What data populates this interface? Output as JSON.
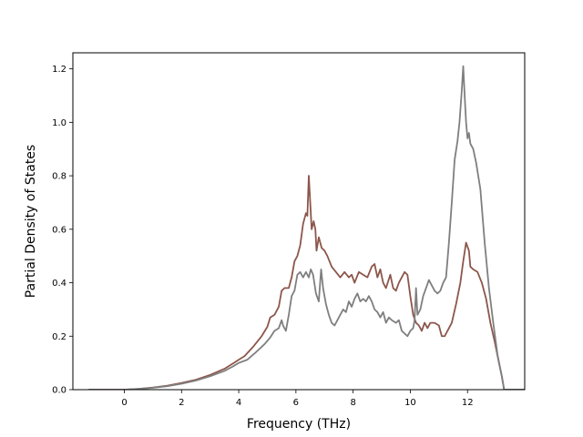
{
  "chart_data": {
    "type": "line",
    "title": "",
    "xlabel": "Frequency (THz)",
    "ylabel": "Partial Density of States",
    "xlim": [
      -1.8,
      14.0
    ],
    "ylim": [
      0.0,
      1.26
    ],
    "xticks": [
      0,
      2,
      4,
      6,
      8,
      10,
      12
    ],
    "yticks": [
      0.0,
      0.2,
      0.4,
      0.6,
      0.8,
      1.0,
      1.2
    ],
    "xtick_labels": [
      "0",
      "2",
      "4",
      "6",
      "8",
      "10",
      "12"
    ],
    "ytick_labels": [
      "0.0",
      "0.2",
      "0.4",
      "0.6",
      "0.8",
      "1.0",
      "1.2"
    ],
    "grid": false,
    "legend": "none",
    "series": [
      {
        "color": "#8c564b",
        "points": [
          [
            -1.25,
            0.0
          ],
          [
            0.0,
            0.0
          ],
          [
            0.5,
            0.003
          ],
          [
            1.0,
            0.008
          ],
          [
            1.5,
            0.015
          ],
          [
            2.0,
            0.025
          ],
          [
            2.5,
            0.037
          ],
          [
            3.0,
            0.055
          ],
          [
            3.5,
            0.078
          ],
          [
            3.8,
            0.098
          ],
          [
            4.0,
            0.112
          ],
          [
            4.2,
            0.125
          ],
          [
            4.5,
            0.16
          ],
          [
            4.8,
            0.2
          ],
          [
            5.0,
            0.235
          ],
          [
            5.1,
            0.27
          ],
          [
            5.25,
            0.28
          ],
          [
            5.4,
            0.31
          ],
          [
            5.5,
            0.37
          ],
          [
            5.6,
            0.38
          ],
          [
            5.75,
            0.38
          ],
          [
            5.85,
            0.42
          ],
          [
            5.95,
            0.48
          ],
          [
            6.05,
            0.5
          ],
          [
            6.15,
            0.54
          ],
          [
            6.25,
            0.62
          ],
          [
            6.35,
            0.66
          ],
          [
            6.4,
            0.65
          ],
          [
            6.45,
            0.8
          ],
          [
            6.5,
            0.7
          ],
          [
            6.55,
            0.6
          ],
          [
            6.62,
            0.63
          ],
          [
            6.68,
            0.6
          ],
          [
            6.72,
            0.52
          ],
          [
            6.8,
            0.57
          ],
          [
            6.9,
            0.53
          ],
          [
            7.0,
            0.52
          ],
          [
            7.1,
            0.5
          ],
          [
            7.25,
            0.46
          ],
          [
            7.4,
            0.44
          ],
          [
            7.55,
            0.42
          ],
          [
            7.7,
            0.44
          ],
          [
            7.85,
            0.42
          ],
          [
            7.95,
            0.43
          ],
          [
            8.05,
            0.4
          ],
          [
            8.2,
            0.44
          ],
          [
            8.35,
            0.43
          ],
          [
            8.5,
            0.42
          ],
          [
            8.65,
            0.46
          ],
          [
            8.75,
            0.47
          ],
          [
            8.85,
            0.42
          ],
          [
            8.95,
            0.45
          ],
          [
            9.05,
            0.4
          ],
          [
            9.15,
            0.38
          ],
          [
            9.3,
            0.43
          ],
          [
            9.4,
            0.38
          ],
          [
            9.5,
            0.37
          ],
          [
            9.6,
            0.4
          ],
          [
            9.7,
            0.42
          ],
          [
            9.8,
            0.44
          ],
          [
            9.9,
            0.43
          ],
          [
            10.0,
            0.35
          ],
          [
            10.1,
            0.28
          ],
          [
            10.2,
            0.25
          ],
          [
            10.3,
            0.24
          ],
          [
            10.4,
            0.22
          ],
          [
            10.5,
            0.25
          ],
          [
            10.6,
            0.23
          ],
          [
            10.7,
            0.25
          ],
          [
            10.85,
            0.25
          ],
          [
            11.0,
            0.24
          ],
          [
            11.1,
            0.2
          ],
          [
            11.2,
            0.2
          ],
          [
            11.3,
            0.22
          ],
          [
            11.45,
            0.25
          ],
          [
            11.6,
            0.32
          ],
          [
            11.75,
            0.4
          ],
          [
            11.85,
            0.48
          ],
          [
            11.95,
            0.55
          ],
          [
            12.05,
            0.52
          ],
          [
            12.1,
            0.46
          ],
          [
            12.2,
            0.45
          ],
          [
            12.35,
            0.44
          ],
          [
            12.5,
            0.4
          ],
          [
            12.65,
            0.34
          ],
          [
            12.8,
            0.25
          ],
          [
            12.95,
            0.18
          ],
          [
            13.1,
            0.1
          ],
          [
            13.2,
            0.05
          ],
          [
            13.28,
            0.0
          ],
          [
            14.5,
            0.0
          ]
        ]
      },
      {
        "color": "#7f7f7f",
        "points": [
          [
            -1.25,
            0.0
          ],
          [
            0.0,
            0.0
          ],
          [
            0.5,
            0.003
          ],
          [
            1.0,
            0.007
          ],
          [
            1.5,
            0.013
          ],
          [
            2.0,
            0.022
          ],
          [
            2.5,
            0.034
          ],
          [
            3.0,
            0.05
          ],
          [
            3.5,
            0.07
          ],
          [
            3.8,
            0.087
          ],
          [
            4.0,
            0.1
          ],
          [
            4.3,
            0.112
          ],
          [
            4.6,
            0.14
          ],
          [
            4.9,
            0.17
          ],
          [
            5.1,
            0.195
          ],
          [
            5.25,
            0.22
          ],
          [
            5.4,
            0.23
          ],
          [
            5.5,
            0.26
          ],
          [
            5.55,
            0.24
          ],
          [
            5.65,
            0.22
          ],
          [
            5.75,
            0.28
          ],
          [
            5.85,
            0.35
          ],
          [
            5.95,
            0.37
          ],
          [
            6.05,
            0.43
          ],
          [
            6.15,
            0.44
          ],
          [
            6.25,
            0.42
          ],
          [
            6.35,
            0.44
          ],
          [
            6.45,
            0.42
          ],
          [
            6.52,
            0.45
          ],
          [
            6.6,
            0.43
          ],
          [
            6.7,
            0.36
          ],
          [
            6.8,
            0.33
          ],
          [
            6.88,
            0.45
          ],
          [
            6.95,
            0.38
          ],
          [
            7.05,
            0.32
          ],
          [
            7.15,
            0.28
          ],
          [
            7.25,
            0.25
          ],
          [
            7.35,
            0.24
          ],
          [
            7.45,
            0.26
          ],
          [
            7.55,
            0.28
          ],
          [
            7.65,
            0.3
          ],
          [
            7.75,
            0.29
          ],
          [
            7.85,
            0.33
          ],
          [
            7.95,
            0.31
          ],
          [
            8.05,
            0.34
          ],
          [
            8.15,
            0.36
          ],
          [
            8.25,
            0.33
          ],
          [
            8.35,
            0.34
          ],
          [
            8.45,
            0.33
          ],
          [
            8.55,
            0.35
          ],
          [
            8.65,
            0.33
          ],
          [
            8.75,
            0.3
          ],
          [
            8.85,
            0.29
          ],
          [
            8.95,
            0.27
          ],
          [
            9.05,
            0.29
          ],
          [
            9.15,
            0.25
          ],
          [
            9.25,
            0.27
          ],
          [
            9.35,
            0.26
          ],
          [
            9.5,
            0.25
          ],
          [
            9.6,
            0.26
          ],
          [
            9.7,
            0.22
          ],
          [
            9.8,
            0.21
          ],
          [
            9.9,
            0.2
          ],
          [
            10.0,
            0.22
          ],
          [
            10.1,
            0.23
          ],
          [
            10.15,
            0.26
          ],
          [
            10.2,
            0.38
          ],
          [
            10.25,
            0.28
          ],
          [
            10.35,
            0.3
          ],
          [
            10.45,
            0.35
          ],
          [
            10.55,
            0.38
          ],
          [
            10.65,
            0.41
          ],
          [
            10.75,
            0.39
          ],
          [
            10.85,
            0.37
          ],
          [
            10.95,
            0.36
          ],
          [
            11.05,
            0.37
          ],
          [
            11.15,
            0.4
          ],
          [
            11.25,
            0.42
          ],
          [
            11.35,
            0.55
          ],
          [
            11.45,
            0.7
          ],
          [
            11.55,
            0.86
          ],
          [
            11.65,
            0.93
          ],
          [
            11.72,
            1.0
          ],
          [
            11.8,
            1.12
          ],
          [
            11.85,
            1.21
          ],
          [
            11.9,
            1.1
          ],
          [
            11.95,
            1.0
          ],
          [
            12.0,
            0.94
          ],
          [
            12.05,
            0.96
          ],
          [
            12.1,
            0.92
          ],
          [
            12.2,
            0.9
          ],
          [
            12.3,
            0.85
          ],
          [
            12.45,
            0.75
          ],
          [
            12.6,
            0.55
          ],
          [
            12.75,
            0.38
          ],
          [
            12.9,
            0.25
          ],
          [
            13.05,
            0.13
          ],
          [
            13.2,
            0.05
          ],
          [
            13.28,
            0.0
          ],
          [
            14.5,
            0.0
          ]
        ]
      }
    ]
  }
}
